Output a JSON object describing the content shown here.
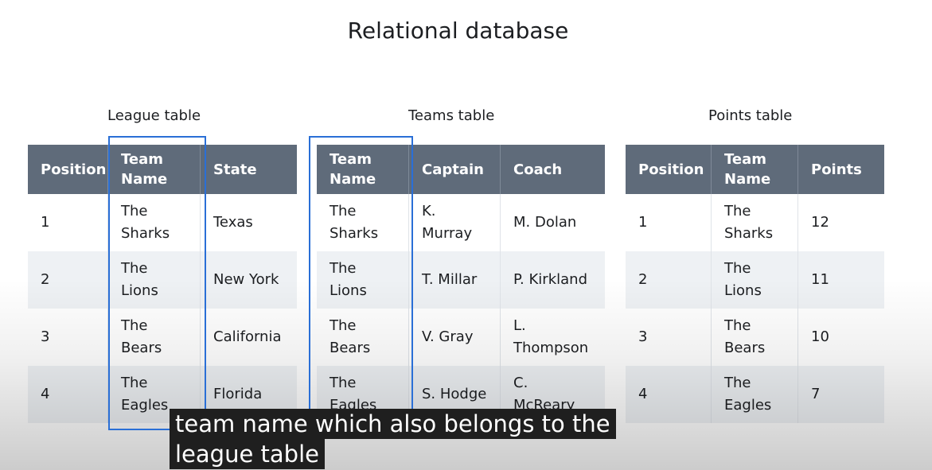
{
  "slide": {
    "title": "Relational database"
  },
  "league_table": {
    "caption": "League table",
    "columns": [
      "Position",
      "Team\nName",
      "State"
    ],
    "rows": [
      [
        "1",
        "The\nSharks",
        "Texas"
      ],
      [
        "2",
        "The\nLions",
        "New York"
      ],
      [
        "3",
        "The\nBears",
        "California"
      ],
      [
        "4",
        "The\nEagles",
        "Florida"
      ]
    ]
  },
  "teams_table": {
    "caption": "Teams table",
    "columns": [
      "Team\nName",
      "Captain",
      "Coach"
    ],
    "rows": [
      [
        "The\nSharks",
        "K.\nMurray",
        "M. Dolan"
      ],
      [
        "The\nLions",
        "T. Millar",
        "P. Kirkland"
      ],
      [
        "The\nBears",
        "V. Gray",
        "L.\nThompson"
      ],
      [
        "The\nEagles",
        "S. Hodge",
        "C.\nMcReary"
      ]
    ]
  },
  "points_table": {
    "caption": "Points table",
    "columns": [
      "Position",
      "Team\nName",
      "Points"
    ],
    "rows": [
      [
        "1",
        "The\nSharks",
        "12"
      ],
      [
        "2",
        "The\nLions",
        "11"
      ],
      [
        "3",
        "The\nBears",
        "10"
      ],
      [
        "4",
        "The\nEagles",
        "7"
      ]
    ]
  },
  "subtitle": {
    "line1": "team name which also belongs to the",
    "line2": "league table"
  },
  "colors": {
    "header_bg": "#5f6b7a",
    "row_alt_bg": "#eef1f4",
    "highlight": "#2a6fd6",
    "caption_bg": "#1f1f1f"
  }
}
